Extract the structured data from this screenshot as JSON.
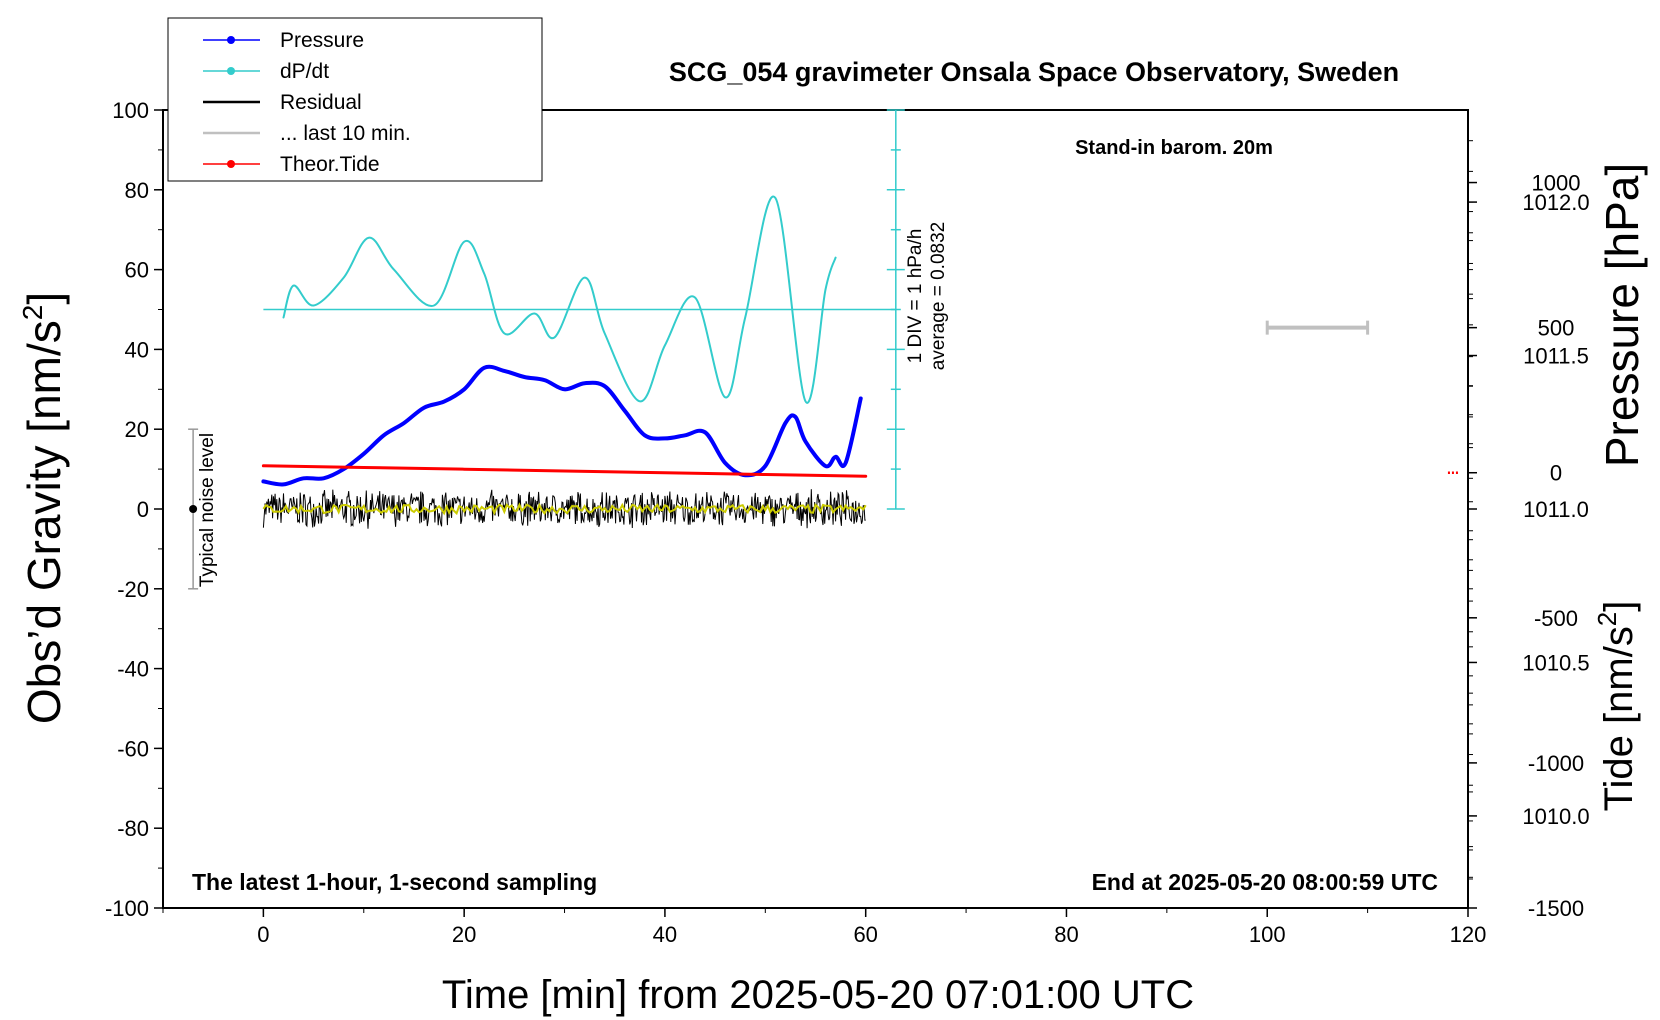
{
  "chart_data": {
    "type": "line",
    "title": "SCG_054 gravimeter Onsala Space Observatory, Sweden",
    "xlabel": "Time [min] from 2025-05-20 07:01:00 UTC",
    "ylabel_left": "Obs’d Gravity [nm/s",
    "ylabel_left_sup": "2",
    "ylabel_left_end": "]",
    "ylabel_right_top": "Pressure [hPa]",
    "ylabel_right_bottom": "Tide [nm/s",
    "ylabel_right_bottom_sup": "2",
    "ylabel_right_bottom_end": "]",
    "xlim": [
      -10,
      120
    ],
    "ylim_left": [
      -100,
      100
    ],
    "xticks": [
      "0",
      "20",
      "40",
      "60",
      "80",
      "100",
      "120"
    ],
    "xtick_values": [
      0,
      20,
      40,
      60,
      80,
      100,
      120
    ],
    "yticks_left": [
      "100",
      "80",
      "60",
      "40",
      "20",
      "0",
      "-20",
      "-40",
      "-60",
      "-80",
      "-100"
    ],
    "ytick_values_left": [
      100,
      80,
      60,
      40,
      20,
      0,
      -20,
      -40,
      -60,
      -80,
      -100
    ],
    "pressure_ticks": [
      "1012.0",
      "1011.5",
      "1011.0",
      "1010.5",
      "1010.0"
    ],
    "pressure_tick_values": [
      1012.0,
      1011.5,
      1011.0,
      1010.5,
      1010.0
    ],
    "pressure_axis_range": [
      1009.7,
      1012.3
    ],
    "tide_ticks": [
      "1000",
      "500",
      "0",
      "-500",
      "-1000",
      "-1500"
    ],
    "tide_tick_values": [
      1000,
      500,
      0,
      -500,
      -1000,
      -1500
    ],
    "tide_axis_range": [
      -1500,
      1250
    ],
    "annotations": {
      "barometer": "Stand-in barom. 20m",
      "sampling": "The latest 1-hour, 1-second sampling",
      "end_time": "End at 2025-05-20 08:00:59 UTC",
      "dpdt_scale": "1 DIV = 1 hPa/h",
      "dpdt_average": "average = 0.0832",
      "noise": "Typical noise level"
    },
    "legend": {
      "placement": "top-left",
      "entries": [
        {
          "label": "Pressure",
          "color": "#0000ff",
          "marker": true
        },
        {
          "label": "dP/dt",
          "color": "#33cccc",
          "marker": true
        },
        {
          "label": "Residual",
          "color": "#000000",
          "marker": false
        },
        {
          "label": "... last 10 min.",
          "color": "#c0c0c0",
          "marker": false
        },
        {
          "label": "Theor.Tide",
          "color": "#ff0000",
          "marker": true
        }
      ]
    },
    "series": [
      {
        "name": "Pressure",
        "color": "#0000ff",
        "axis": "pressure",
        "x": [
          0,
          2,
          4,
          6,
          8,
          10,
          12,
          14,
          16,
          18,
          20,
          22,
          24,
          26,
          28,
          30,
          32,
          34,
          36,
          38,
          40,
          42,
          44,
          46,
          48,
          50,
          52,
          53,
          54,
          56,
          57,
          58,
          59.5
        ],
        "y": [
          1011.09,
          1011.08,
          1011.1,
          1011.1,
          1011.13,
          1011.18,
          1011.24,
          1011.28,
          1011.33,
          1011.35,
          1011.39,
          1011.46,
          1011.45,
          1011.43,
          1011.42,
          1011.39,
          1011.41,
          1011.4,
          1011.32,
          1011.24,
          1011.23,
          1011.24,
          1011.25,
          1011.15,
          1011.11,
          1011.14,
          1011.28,
          1011.3,
          1011.22,
          1011.14,
          1011.17,
          1011.15,
          1011.36
        ]
      },
      {
        "name": "dP/dt",
        "color": "#33cccc",
        "axis": "left",
        "x": [
          2,
          3,
          5,
          8,
          10.5,
          13,
          17,
          20,
          22,
          24,
          27,
          29,
          32,
          34,
          37.5,
          40,
          43,
          46,
          48,
          51,
          54,
          56,
          57
        ],
        "y": [
          48,
          56,
          51,
          58,
          68,
          60,
          51,
          67,
          59,
          44,
          49,
          43,
          58,
          44,
          27,
          41,
          53,
          28,
          48,
          78,
          27,
          55,
          63
        ]
      },
      {
        "name": "dP/dt zero line",
        "color": "#33cccc",
        "axis": "left",
        "x": [
          0,
          63
        ],
        "y": [
          50,
          50
        ]
      },
      {
        "name": "Residual",
        "color": "#000000",
        "axis": "left",
        "x": [
          0,
          60
        ],
        "y": [
          0,
          0
        ],
        "noise_amplitude": 5
      },
      {
        "name": "Residual smoothed",
        "color": "#cccc00",
        "axis": "left",
        "x": [
          0,
          60
        ],
        "y": [
          0,
          0
        ]
      },
      {
        "name": "Theor.Tide",
        "color": "#ff0000",
        "axis": "tide",
        "x": [
          0,
          10,
          20,
          30,
          40,
          50,
          60
        ],
        "y": [
          24,
          18,
          12,
          6,
          0,
          -6,
          -12
        ]
      }
    ],
    "last10_bar": {
      "x": [
        100,
        110
      ],
      "tide": 500,
      "color": "#c0c0c0"
    },
    "tide_marker": {
      "x": 118.6,
      "tide": 0,
      "color": "#ff0000"
    },
    "noise_bar": {
      "x": -7,
      "y": [
        20,
        -20
      ],
      "center": 0
    },
    "dpdt_axis": {
      "x": 63,
      "y_top": 100,
      "y_bottom": 0,
      "divisions": 10
    }
  }
}
